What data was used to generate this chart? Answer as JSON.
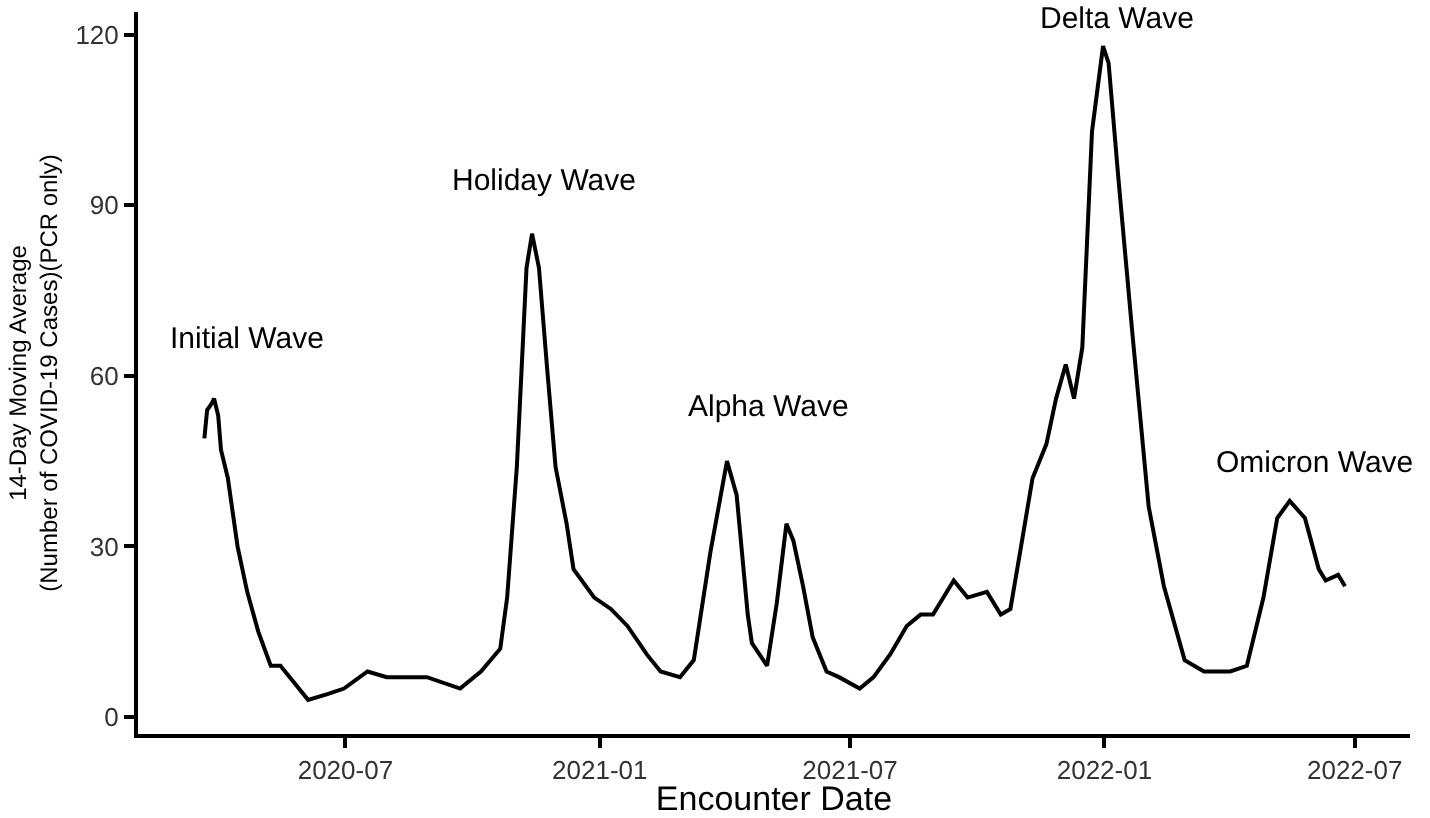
{
  "chart_data": {
    "type": "line",
    "xlabel": "Encounter Date",
    "ylabel": "14-Day Moving Average\n(Number of COVID-19 Cases)(PCR only)",
    "x": [
      "2020-03-21",
      "2020-03-23",
      "2020-03-26",
      "2020-03-28",
      "2020-03-31",
      "2020-04-02",
      "2020-04-07",
      "2020-04-14",
      "2020-04-21",
      "2020-04-29",
      "2020-05-08",
      "2020-05-15",
      "2020-05-25",
      "2020-06-04",
      "2020-06-18",
      "2020-06-30",
      "2020-07-17",
      "2020-07-31",
      "2020-08-15",
      "2020-08-29",
      "2020-09-22",
      "2020-10-07",
      "2020-10-21",
      "2020-10-26",
      "2020-11-02",
      "2020-11-09",
      "2020-11-13",
      "2020-11-18",
      "2020-11-24",
      "2020-11-30",
      "2020-12-08",
      "2020-12-13",
      "2020-12-28",
      "2021-01-09",
      "2021-01-21",
      "2021-02-04",
      "2021-02-14",
      "2021-02-28",
      "2021-03-10",
      "2021-03-22",
      "2021-04-03",
      "2021-04-10",
      "2021-04-18",
      "2021-04-21",
      "2021-05-02",
      "2021-05-09",
      "2021-05-16",
      "2021-05-21",
      "2021-05-28",
      "2021-06-04",
      "2021-06-14",
      "2021-06-23",
      "2021-07-08",
      "2021-07-18",
      "2021-07-30",
      "2021-08-11",
      "2021-08-21",
      "2021-08-30",
      "2021-09-14",
      "2021-09-24",
      "2021-10-08",
      "2021-10-18",
      "2021-10-25",
      "2021-11-01",
      "2021-11-10",
      "2021-11-20",
      "2021-11-27",
      "2021-12-04",
      "2021-12-10",
      "2021-12-16",
      "2021-12-23",
      "2021-12-31",
      "2022-01-04",
      "2022-01-11",
      "2022-01-21",
      "2022-02-02",
      "2022-02-13",
      "2022-02-28",
      "2022-03-14",
      "2022-04-02",
      "2022-04-14",
      "2022-04-26",
      "2022-05-06",
      "2022-05-15",
      "2022-05-26",
      "2022-06-05",
      "2022-06-10",
      "2022-06-19",
      "2022-06-24"
    ],
    "series": [
      {
        "color": "#000000",
        "values": [
          49,
          54,
          55,
          56,
          53,
          47,
          42,
          30,
          22,
          15,
          9,
          9,
          6,
          3,
          4,
          5,
          8,
          7,
          7,
          7,
          5,
          8,
          12,
          21,
          44,
          79,
          85,
          79,
          61,
          44,
          34,
          26,
          21,
          19,
          16,
          11,
          8,
          7,
          10,
          29,
          45,
          39,
          18,
          13,
          9,
          20,
          34,
          31,
          23,
          14,
          8,
          7,
          5,
          7,
          11,
          16,
          18,
          18,
          24,
          21,
          22,
          18,
          19,
          29,
          42,
          48,
          56,
          62,
          56,
          65,
          103,
          118,
          115,
          95,
          68,
          37,
          23,
          10,
          8,
          8,
          9,
          21,
          35,
          38,
          35,
          26,
          24,
          25,
          23
        ]
      }
    ],
    "xlim": [
      "2020-02-02",
      "2022-08-10"
    ],
    "xticks": [
      {
        "value": "2020-07-01",
        "label": "2020-07"
      },
      {
        "value": "2021-01-01",
        "label": "2021-01"
      },
      {
        "value": "2021-07-01",
        "label": "2021-07"
      },
      {
        "value": "2022-01-01",
        "label": "2022-01"
      },
      {
        "value": "2022-07-01",
        "label": "2022-07"
      }
    ],
    "ylim": [
      -3,
      124
    ],
    "yticks": [
      0,
      30,
      60,
      90,
      120
    ],
    "grid": false,
    "line_style": "solid",
    "marker": "none",
    "annotations": [
      "Initial Wave",
      "Holiday Wave",
      "Alpha Wave",
      "Delta Wave",
      "Omicron Wave"
    ]
  }
}
